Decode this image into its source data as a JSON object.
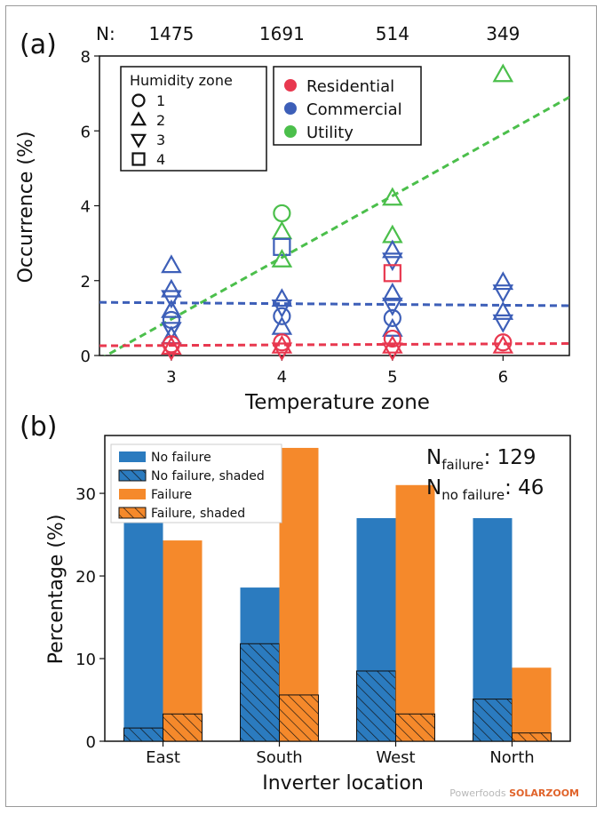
{
  "chart_data": [
    {
      "type": "scatter",
      "panel_label": "(a)",
      "n_prefix": "N:",
      "n_counts": [
        "1475",
        "1691",
        "514",
        "349"
      ],
      "xlabel": "Temperature zone",
      "ylabel": "Occurrence (%)",
      "xticks": [
        3,
        4,
        5,
        6
      ],
      "yticks": [
        0,
        2,
        4,
        6,
        8
      ],
      "xlim": [
        2.35,
        6.6
      ],
      "ylim": [
        0,
        8
      ],
      "legend_humidity": {
        "title": "Humidity zone",
        "items": [
          {
            "label": "1",
            "marker": "circle"
          },
          {
            "label": "2",
            "marker": "triangle-up"
          },
          {
            "label": "3",
            "marker": "triangle-down"
          },
          {
            "label": "4",
            "marker": "square"
          }
        ]
      },
      "legend_type": [
        {
          "label": "Residential",
          "color": "#e8384f"
        },
        {
          "label": "Commercial",
          "color": "#3d5fb8"
        },
        {
          "label": "Utility",
          "color": "#4bbf4b"
        }
      ],
      "points": [
        {
          "t": 3,
          "h": 2,
          "y": 2.4,
          "series": "Commercial"
        },
        {
          "t": 3,
          "h": 2,
          "y": 1.75,
          "series": "Commercial"
        },
        {
          "t": 3,
          "h": 3,
          "y": 1.55,
          "series": "Commercial"
        },
        {
          "t": 3,
          "h": 2,
          "y": 1.2,
          "series": "Commercial"
        },
        {
          "t": 3,
          "h": 1,
          "y": 0.95,
          "series": "Commercial"
        },
        {
          "t": 3,
          "h": 3,
          "y": 0.7,
          "series": "Commercial"
        },
        {
          "t": 3,
          "h": 2,
          "y": 0.5,
          "series": "Commercial"
        },
        {
          "t": 3,
          "h": 1,
          "y": 0.3,
          "series": "Residential"
        },
        {
          "t": 3,
          "h": 2,
          "y": 0.22,
          "series": "Residential"
        },
        {
          "t": 3,
          "h": 3,
          "y": 0.15,
          "series": "Residential"
        },
        {
          "t": 4,
          "h": 1,
          "y": 3.8,
          "series": "Utility"
        },
        {
          "t": 4,
          "h": 2,
          "y": 3.3,
          "series": "Utility"
        },
        {
          "t": 4,
          "h": 4,
          "y": 2.9,
          "series": "Commercial"
        },
        {
          "t": 4,
          "h": 2,
          "y": 2.55,
          "series": "Utility"
        },
        {
          "t": 4,
          "h": 2,
          "y": 1.5,
          "series": "Commercial"
        },
        {
          "t": 4,
          "h": 3,
          "y": 1.3,
          "series": "Commercial"
        },
        {
          "t": 4,
          "h": 1,
          "y": 1.05,
          "series": "Commercial"
        },
        {
          "t": 4,
          "h": 2,
          "y": 0.75,
          "series": "Commercial"
        },
        {
          "t": 4,
          "h": 1,
          "y": 0.35,
          "series": "Residential"
        },
        {
          "t": 4,
          "h": 2,
          "y": 0.25,
          "series": "Residential"
        },
        {
          "t": 4,
          "h": 3,
          "y": 0.15,
          "series": "Residential"
        },
        {
          "t": 5,
          "h": 2,
          "y": 4.2,
          "series": "Utility"
        },
        {
          "t": 5,
          "h": 2,
          "y": 3.2,
          "series": "Utility"
        },
        {
          "t": 5,
          "h": 2,
          "y": 2.8,
          "series": "Commercial"
        },
        {
          "t": 5,
          "h": 3,
          "y": 2.55,
          "series": "Commercial"
        },
        {
          "t": 5,
          "h": 4,
          "y": 2.2,
          "series": "Residential"
        },
        {
          "t": 5,
          "h": 2,
          "y": 1.65,
          "series": "Commercial"
        },
        {
          "t": 5,
          "h": 3,
          "y": 1.35,
          "series": "Commercial"
        },
        {
          "t": 5,
          "h": 1,
          "y": 1.0,
          "series": "Commercial"
        },
        {
          "t": 5,
          "h": 2,
          "y": 0.7,
          "series": "Commercial"
        },
        {
          "t": 5,
          "h": 1,
          "y": 0.45,
          "series": "Residential"
        },
        {
          "t": 5,
          "h": 2,
          "y": 0.25,
          "series": "Residential"
        },
        {
          "t": 5,
          "h": 3,
          "y": 0.15,
          "series": "Residential"
        },
        {
          "t": 6,
          "h": 2,
          "y": 7.5,
          "series": "Utility"
        },
        {
          "t": 6,
          "h": 2,
          "y": 1.95,
          "series": "Commercial"
        },
        {
          "t": 6,
          "h": 3,
          "y": 1.7,
          "series": "Commercial"
        },
        {
          "t": 6,
          "h": 2,
          "y": 1.15,
          "series": "Commercial"
        },
        {
          "t": 6,
          "h": 3,
          "y": 0.9,
          "series": "Commercial"
        },
        {
          "t": 6,
          "h": 1,
          "y": 0.35,
          "series": "Residential"
        },
        {
          "t": 6,
          "h": 2,
          "y": 0.25,
          "series": "Residential"
        }
      ],
      "trend_lines": [
        {
          "series": "Utility",
          "color": "#4bbf4b",
          "y_at_2.35": -0.1,
          "y_at_6.6": 6.9
        },
        {
          "series": "Commercial",
          "color": "#3d5fb8",
          "y_at_2.35": 1.42,
          "y_at_6.6": 1.33
        },
        {
          "series": "Residential",
          "color": "#e8384f",
          "y_at_2.35": 0.26,
          "y_at_6.6": 0.32
        }
      ]
    },
    {
      "type": "bar",
      "panel_label": "(b)",
      "xlabel": "Inverter location",
      "ylabel": "Percentage (%)",
      "categories": [
        "East",
        "South",
        "West",
        "North"
      ],
      "yticks": [
        0,
        10,
        20,
        30
      ],
      "ylim": [
        0,
        37
      ],
      "series": [
        {
          "name": "No failure",
          "color": "#2b7bbf",
          "values": [
            27.0,
            18.6,
            27.0,
            27.0
          ]
        },
        {
          "name": "No failure, shaded",
          "color": "#2b7bbf",
          "hatched": true,
          "values": [
            1.6,
            11.8,
            8.5,
            5.1
          ]
        },
        {
          "name": "Failure",
          "color": "#f5892b",
          "values": [
            24.3,
            35.5,
            31.0,
            8.9
          ]
        },
        {
          "name": "Failure, shaded",
          "color": "#f5892b",
          "hatched": true,
          "values": [
            3.3,
            5.6,
            3.3,
            1.0
          ]
        }
      ],
      "annotations": [
        {
          "main": "N",
          "sub": "failure",
          "value": ": 129"
        },
        {
          "main": "N",
          "sub": "no failure",
          "value": ": 46"
        }
      ]
    }
  ],
  "watermark": {
    "text": "Powerfoods",
    "brand": "SOLARZOOM"
  }
}
